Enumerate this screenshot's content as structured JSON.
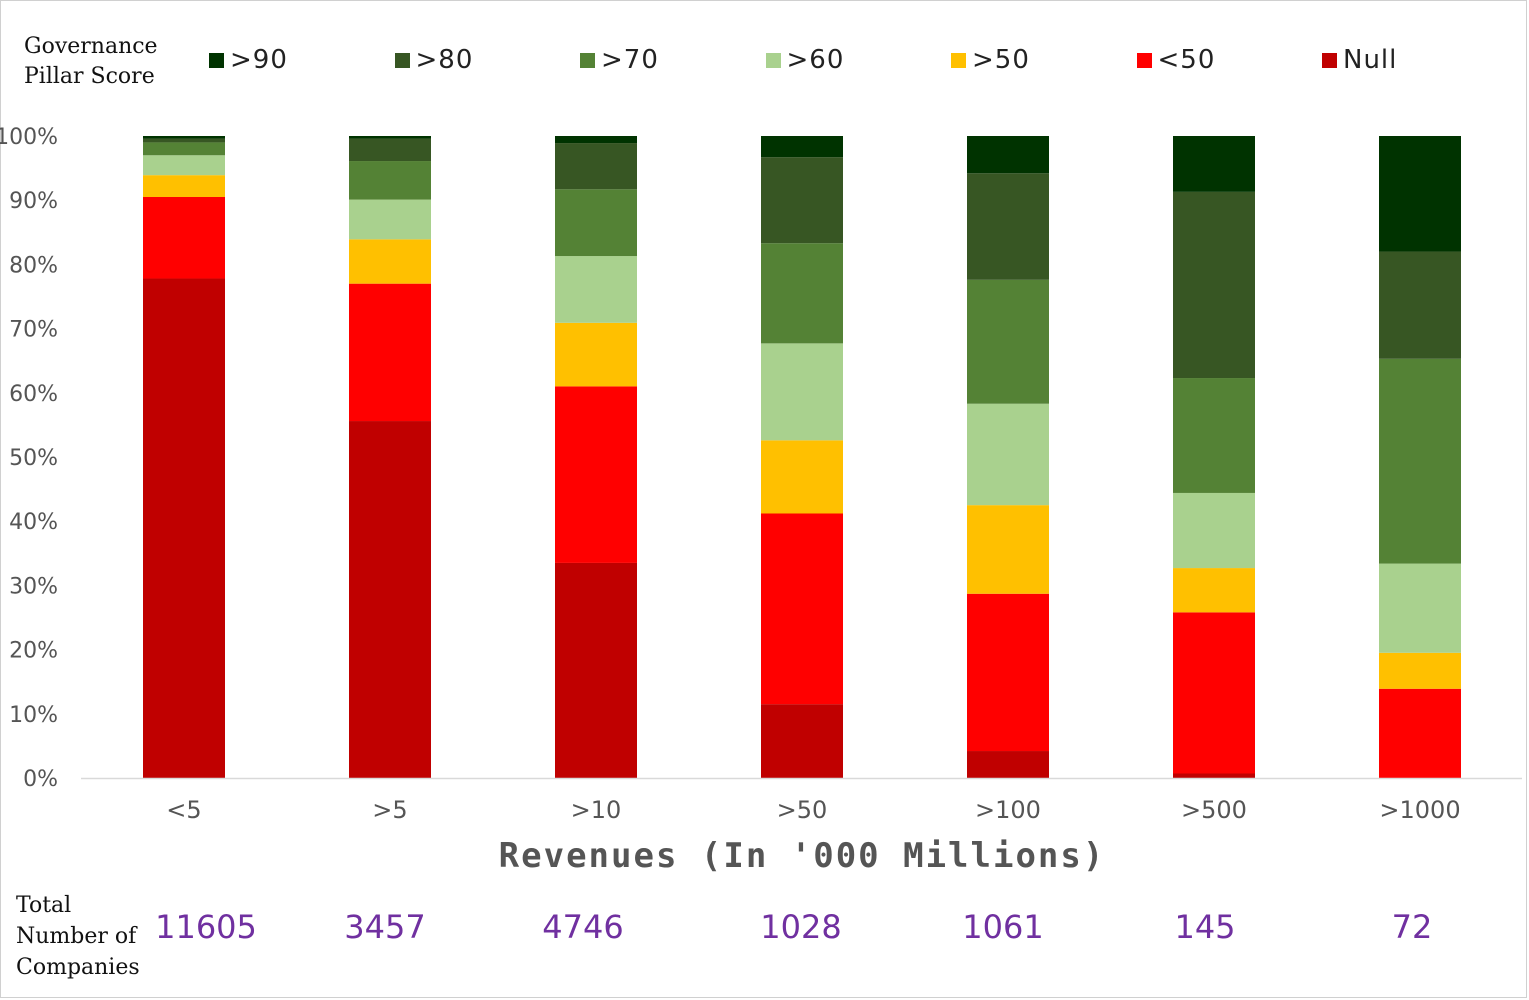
{
  "chart_data": {
    "type": "bar",
    "stacked": true,
    "normalized": true,
    "legend_title": [
      "Governance",
      "Pillar Score"
    ],
    "legend_placement": "top",
    "categories": [
      "<5",
      ">5",
      ">10",
      ">50",
      ">100",
      ">500",
      ">1000"
    ],
    "xlabel": "Revenues (In '000 Millions)",
    "ylabel": "",
    "ylim": [
      0,
      100
    ],
    "yticks": [
      "0%",
      "10%",
      "20%",
      "30%",
      "40%",
      "50%",
      "60%",
      "70%",
      "80%",
      "90%",
      "100%"
    ],
    "grid": false,
    "series": [
      {
        "name": "Null",
        "color": "#c00000",
        "values": [
          77.8,
          55.6,
          33.5,
          11.5,
          4.2,
          0.7,
          0
        ]
      },
      {
        "name": "<50",
        "color": "#ff0000",
        "values": [
          12.7,
          21.4,
          27.5,
          29.7,
          24.5,
          25.1,
          13.9
        ]
      },
      {
        "name": ">50",
        "color": "#ffc000",
        "values": [
          3.4,
          6.9,
          9.9,
          11.4,
          13.8,
          6.9,
          5.6
        ]
      },
      {
        "name": ">60",
        "color": "#a9d18e",
        "values": [
          3.1,
          6.2,
          10.4,
          15.1,
          15.8,
          11.7,
          13.9
        ]
      },
      {
        "name": ">70",
        "color": "#548235",
        "values": [
          2.0,
          6.0,
          10.4,
          15.6,
          19.3,
          17.9,
          31.9
        ]
      },
      {
        "name": ">80",
        "color": "#375623",
        "values": [
          0.6,
          3.5,
          7.2,
          13.4,
          16.6,
          29.0,
          16.7
        ]
      },
      {
        "name": ">90",
        "color": "#003300",
        "values": [
          0.4,
          0.4,
          1.1,
          3.3,
          5.8,
          8.7,
          18.0
        ]
      }
    ],
    "legend_order": [
      ">90",
      ">80",
      ">70",
      ">60",
      ">50",
      "<50",
      "Null"
    ]
  },
  "totals": {
    "label": [
      "Total",
      "Number of",
      "Companies"
    ],
    "values": [
      "11605",
      "3457",
      "4746",
      "1028",
      "1061",
      "145",
      "72"
    ]
  }
}
